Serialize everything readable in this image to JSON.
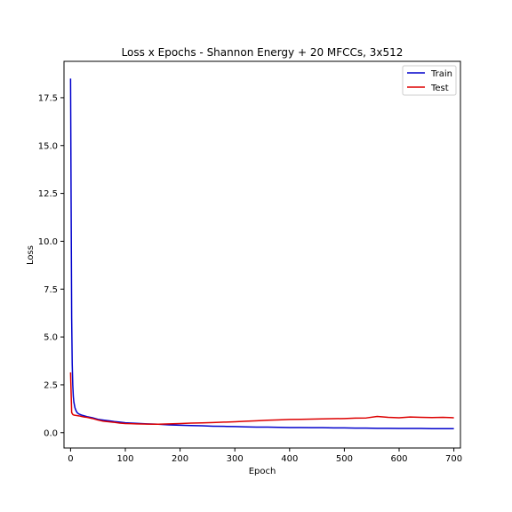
{
  "chart_data": {
    "type": "line",
    "title": "Loss x Epochs - Shannon Energy + 20 MFCCs, 3x512",
    "xlabel": "Epoch",
    "ylabel": "Loss",
    "xlim": [
      -12,
      712
    ],
    "ylim": [
      -0.8,
      19.4
    ],
    "xticks": [
      0,
      100,
      200,
      300,
      400,
      500,
      600,
      700
    ],
    "yticks": [
      0.0,
      2.5,
      5.0,
      7.5,
      10.0,
      12.5,
      15.0,
      17.5
    ],
    "xtick_labels": [
      "0",
      "100",
      "200",
      "300",
      "400",
      "500",
      "600",
      "700"
    ],
    "ytick_labels": [
      "0.0",
      "2.5",
      "5.0",
      "7.5",
      "10.0",
      "12.5",
      "15.0",
      "17.5"
    ],
    "grid": false,
    "legend_position": "upper right",
    "series": [
      {
        "name": "Train",
        "color": "#0000cc",
        "x": [
          0,
          1,
          2,
          3,
          4,
          5,
          6,
          8,
          10,
          12,
          15,
          20,
          25,
          30,
          40,
          50,
          60,
          70,
          80,
          90,
          100,
          120,
          140,
          160,
          180,
          200,
          220,
          240,
          260,
          280,
          300,
          320,
          340,
          360,
          380,
          400,
          420,
          440,
          460,
          480,
          500,
          520,
          540,
          560,
          580,
          600,
          620,
          640,
          660,
          680,
          700
        ],
        "values": [
          18.5,
          12.0,
          6.0,
          3.6,
          2.5,
          1.9,
          1.6,
          1.3,
          1.15,
          1.05,
          0.98,
          0.92,
          0.88,
          0.84,
          0.78,
          0.7,
          0.66,
          0.62,
          0.58,
          0.55,
          0.52,
          0.49,
          0.46,
          0.44,
          0.41,
          0.39,
          0.37,
          0.36,
          0.34,
          0.33,
          0.32,
          0.3,
          0.29,
          0.29,
          0.28,
          0.27,
          0.27,
          0.26,
          0.26,
          0.25,
          0.25,
          0.24,
          0.24,
          0.23,
          0.23,
          0.22,
          0.22,
          0.22,
          0.21,
          0.21,
          0.21
        ]
      },
      {
        "name": "Test",
        "color": "#dd0000",
        "x": [
          0,
          2,
          4,
          6,
          10,
          15,
          20,
          25,
          30,
          40,
          50,
          60,
          70,
          80,
          90,
          100,
          110,
          120,
          140,
          160,
          180,
          200,
          220,
          240,
          260,
          280,
          300,
          320,
          340,
          360,
          380,
          400,
          420,
          440,
          460,
          480,
          500,
          520,
          540,
          560,
          580,
          600,
          620,
          640,
          660,
          680,
          700
        ],
        "values": [
          3.15,
          1.05,
          0.95,
          0.92,
          0.9,
          0.88,
          0.85,
          0.82,
          0.8,
          0.74,
          0.66,
          0.6,
          0.57,
          0.54,
          0.5,
          0.48,
          0.47,
          0.46,
          0.45,
          0.44,
          0.46,
          0.48,
          0.5,
          0.51,
          0.53,
          0.55,
          0.57,
          0.6,
          0.62,
          0.65,
          0.67,
          0.69,
          0.7,
          0.71,
          0.72,
          0.73,
          0.74,
          0.76,
          0.77,
          0.85,
          0.8,
          0.78,
          0.82,
          0.8,
          0.79,
          0.8,
          0.78
        ]
      }
    ]
  }
}
